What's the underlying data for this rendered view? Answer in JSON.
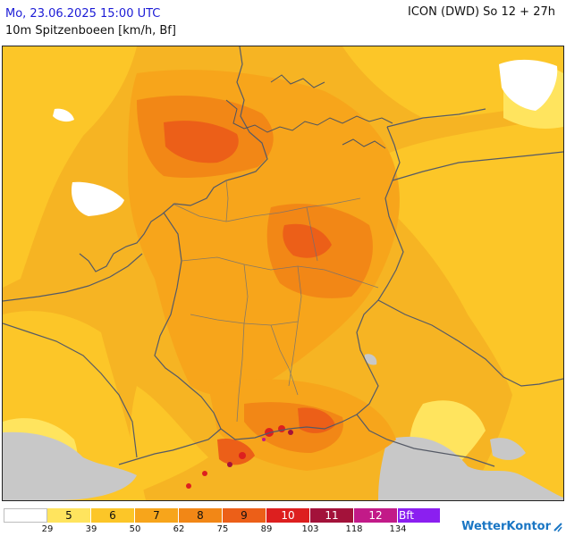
{
  "header": {
    "datetime": "Mo, 23.06.2025 15:00 UTC",
    "parameter": "10m Spitzenboeen [km/h, Bf]",
    "model_run": "ICON (DWD) So 12 + 27h"
  },
  "legend": {
    "swatches": [
      {
        "label": "",
        "color": "#ffffff"
      },
      {
        "label": "5",
        "color": "#ffe45e"
      },
      {
        "label": "6",
        "color": "#fcc628"
      },
      {
        "label": "7",
        "color": "#f7a51b"
      },
      {
        "label": "8",
        "color": "#f28716"
      },
      {
        "label": "9",
        "color": "#ec5f18"
      },
      {
        "label": "10",
        "color": "#dd1f1f"
      },
      {
        "label": "11",
        "color": "#a3123a"
      },
      {
        "label": "12",
        "color": "#c21a88"
      },
      {
        "label": "Bft",
        "color": "#8b1ff0"
      }
    ],
    "ticks": [
      "29",
      "39",
      "50",
      "62",
      "75",
      "89",
      "103",
      "118",
      "134"
    ]
  },
  "brand": {
    "name": "WetterKontor"
  },
  "colors": {
    "terrain_gray": "#c8c8c8",
    "border_line": "#555a66",
    "datetime_text": "#1b1bd6",
    "brand_blue": "#1a76c4"
  }
}
